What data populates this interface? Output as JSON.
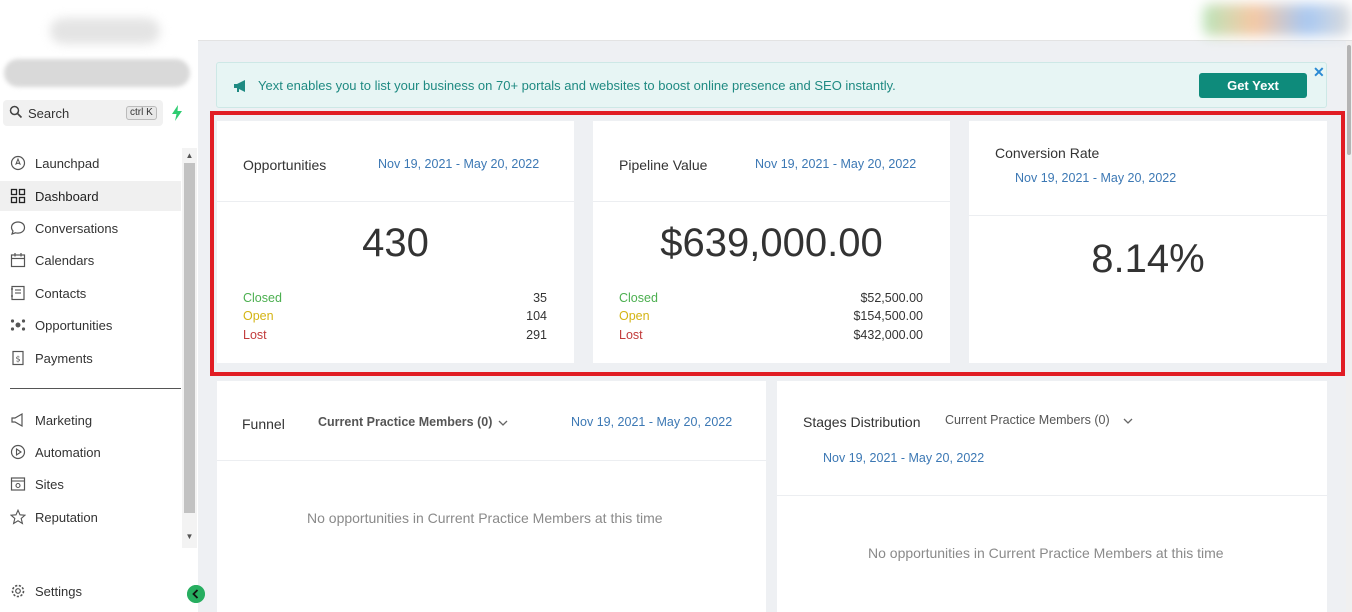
{
  "sidebar": {
    "search": {
      "label": "Search",
      "shortcut": "ctrl K"
    },
    "items": [
      {
        "label": "Launchpad",
        "icon": "launchpad-icon"
      },
      {
        "label": "Dashboard",
        "icon": "dashboard-icon",
        "active": true
      },
      {
        "label": "Conversations",
        "icon": "chat-bubble-icon"
      },
      {
        "label": "Calendars",
        "icon": "calendar-icon"
      },
      {
        "label": "Contacts",
        "icon": "contacts-icon"
      },
      {
        "label": "Opportunities",
        "icon": "opportunities-icon"
      },
      {
        "label": "Payments",
        "icon": "payments-icon"
      },
      {
        "label": "Marketing",
        "icon": "megaphone-icon"
      },
      {
        "label": "Automation",
        "icon": "automation-icon"
      },
      {
        "label": "Sites",
        "icon": "sites-icon"
      },
      {
        "label": "Reputation",
        "icon": "star-icon"
      }
    ],
    "settings_label": "Settings"
  },
  "banner": {
    "message": "Yext enables you to list your business on 70+ portals and websites to boost online presence and SEO instantly.",
    "button_label": "Get Yext",
    "close_glyph": "✕"
  },
  "cards": {
    "opportunities": {
      "title": "Opportunities",
      "date_range": "Nov 19, 2021 - May 20, 2022",
      "total": "430",
      "rows": [
        {
          "label": "Closed",
          "value": "35"
        },
        {
          "label": "Open",
          "value": "104"
        },
        {
          "label": "Lost",
          "value": "291"
        }
      ]
    },
    "pipeline": {
      "title": "Pipeline Value",
      "date_range": "Nov 19, 2021 - May 20, 2022",
      "total": "$639,000.00",
      "rows": [
        {
          "label": "Closed",
          "value": "$52,500.00"
        },
        {
          "label": "Open",
          "value": "$154,500.00"
        },
        {
          "label": "Lost",
          "value": "$432,000.00"
        }
      ]
    },
    "conversion": {
      "title": "Conversion Rate",
      "date_range": "Nov 19, 2021 - May 20, 2022",
      "total": "8.14%"
    },
    "funnel": {
      "title": "Funnel",
      "filter": "Current Practice Members (0)",
      "date_range": "Nov 19, 2021 - May 20, 2022",
      "empty": "No opportunities in Current Practice Members at this time"
    },
    "stages": {
      "title": "Stages Distribution",
      "filter": "Current Practice Members (0)",
      "date_range": "Nov 19, 2021 - May 20, 2022",
      "empty": "No opportunities in Current Practice Members at this time"
    }
  },
  "colors": {
    "accent": "#0e8b7b",
    "closed": "#4caf50",
    "open": "#d4b414",
    "lost": "#c23b3b",
    "date_link": "#3c78b4",
    "highlight": "#e11d24"
  }
}
